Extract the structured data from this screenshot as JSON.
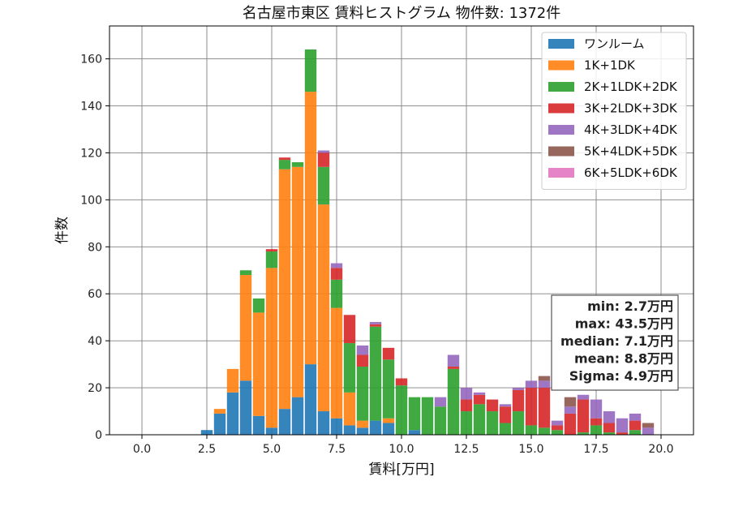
{
  "chart_data": {
    "type": "bar",
    "stacked": true,
    "title": "名古屋市東区 賃料ヒストグラム  物件数: 1372件",
    "xlabel": "賃料[万円]",
    "ylabel": "件数",
    "xlim": [
      -1.25,
      21.25
    ],
    "ylim": [
      0,
      174
    ],
    "x_ticks": [
      0,
      2.5,
      5,
      7.5,
      10,
      12.5,
      15,
      17.5,
      20
    ],
    "x_tick_labels": [
      "0.0",
      "2.5",
      "5.0",
      "7.5",
      "10.0",
      "12.5",
      "15.0",
      "17.5",
      "20.0"
    ],
    "y_ticks": [
      0,
      20,
      40,
      60,
      80,
      100,
      120,
      140,
      160
    ],
    "y_tick_labels": [
      "0",
      "20",
      "40",
      "60",
      "80",
      "100",
      "120",
      "140",
      "160"
    ],
    "grid": true,
    "legend_position": "top-right",
    "bin_width": 0.5,
    "x": [
      2.5,
      3.0,
      3.5,
      4.0,
      4.5,
      5.0,
      5.5,
      6.0,
      6.5,
      7.0,
      7.5,
      8.0,
      8.5,
      9.0,
      9.5,
      10.0,
      10.5,
      11.0,
      11.5,
      12.0,
      12.5,
      13.0,
      13.5,
      14.0,
      14.5,
      15.0,
      15.5,
      16.0,
      16.5,
      17.0,
      17.5,
      18.0,
      18.5,
      19.0,
      19.5
    ],
    "series": [
      {
        "name": "ワンルーム",
        "color": "#1f77b4",
        "values": [
          2,
          9,
          18,
          23,
          8,
          3,
          11,
          16,
          30,
          10,
          7,
          4,
          3,
          6,
          5,
          0,
          2,
          0,
          0,
          0,
          0,
          0,
          0,
          0,
          0,
          0,
          0,
          0,
          0,
          0,
          0,
          0,
          0,
          0,
          0
        ]
      },
      {
        "name": "1K+1DK",
        "color": "#ff7f0e",
        "values": [
          0,
          2,
          10,
          45,
          44,
          68,
          102,
          98,
          116,
          88,
          47,
          14,
          3,
          0,
          2,
          0,
          0,
          0,
          0,
          0,
          0,
          0,
          0,
          0,
          0,
          0,
          0,
          0,
          0,
          0,
          0,
          0,
          0,
          0,
          0
        ]
      },
      {
        "name": "2K+1LDK+2DK",
        "color": "#2ca02c",
        "values": [
          0,
          0,
          0,
          2,
          6,
          7,
          4,
          2,
          18,
          16,
          12,
          21,
          23,
          40,
          25,
          21,
          14,
          16,
          12,
          28,
          10,
          13,
          10,
          5,
          10,
          4,
          3,
          2,
          0,
          1,
          4,
          1,
          0,
          2,
          0
        ]
      },
      {
        "name": "3K+2LDK+3DK",
        "color": "#d62728",
        "values": [
          0,
          0,
          0,
          0,
          0,
          1,
          1,
          0,
          0,
          6,
          5,
          12,
          5,
          1,
          5,
          3,
          0,
          0,
          0,
          1,
          5,
          4,
          5,
          7,
          9,
          16,
          17,
          2,
          9,
          14,
          3,
          4,
          1,
          4,
          0
        ]
      },
      {
        "name": "4K+3LDK+4DK",
        "color": "#9467bd",
        "values": [
          0,
          0,
          0,
          0,
          0,
          0,
          0,
          0,
          0,
          1,
          2,
          0,
          4,
          1,
          0,
          0,
          0,
          0,
          4,
          5,
          5,
          1,
          0,
          1,
          1,
          3,
          3,
          2,
          3,
          2,
          8,
          5,
          6,
          3,
          3
        ]
      },
      {
        "name": "5K+4LDK+5DK",
        "color": "#8c564b",
        "values": [
          0,
          0,
          0,
          0,
          0,
          0,
          0,
          0,
          0,
          0,
          0,
          0,
          0,
          0,
          0,
          0,
          0,
          0,
          0,
          0,
          0,
          0,
          0,
          0,
          0,
          0,
          2,
          0,
          4,
          0,
          0,
          0,
          0,
          0,
          2
        ]
      },
      {
        "name": "6K+5LDK+6DK",
        "color": "#e377c2",
        "values": [
          0,
          0,
          0,
          0,
          0,
          0,
          0,
          0,
          0,
          0,
          0,
          0,
          0,
          0,
          0,
          0,
          0,
          0,
          0,
          0,
          0,
          0,
          0,
          0,
          0,
          0,
          0,
          0,
          0,
          0,
          0,
          0,
          0,
          0,
          0
        ]
      }
    ],
    "stats_box": {
      "lines": [
        "min: 2.7万円",
        "max: 43.5万円",
        "median: 7.1万円",
        "mean: 8.8万円",
        "Sigma: 4.9万円"
      ]
    }
  }
}
